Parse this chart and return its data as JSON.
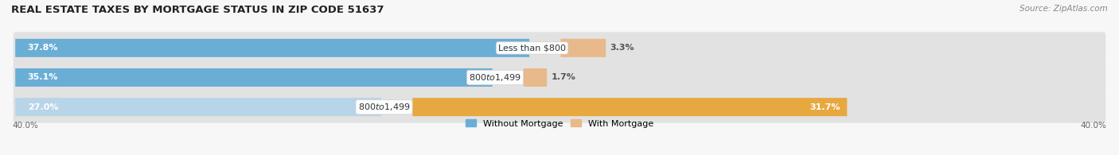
{
  "title": "REAL ESTATE TAXES BY MORTGAGE STATUS IN ZIP CODE 51637",
  "source": "Source: ZipAtlas.com",
  "rows": [
    {
      "without_mortgage": 37.8,
      "label": "Less than $800",
      "with_mortgage": 3.3
    },
    {
      "without_mortgage": 35.1,
      "label": "$800 to $1,499",
      "with_mortgage": 1.7
    },
    {
      "without_mortgage": 27.0,
      "label": "$800 to $1,499",
      "with_mortgage": 31.7
    }
  ],
  "xlim": 40.0,
  "color_without": "#6aaed6",
  "color_without_light": "#b8d4e8",
  "color_with_row0": "#e8b98a",
  "color_with_row1": "#e8b98a",
  "color_with_row2": "#e8a840",
  "bar_height": 0.62,
  "background_color": "#f7f7f7",
  "row_bg_color": "#e2e2e2",
  "legend_label_without": "Without Mortgage",
  "legend_label_with": "With Mortgage",
  "axis_label": "40.0%",
  "title_fontsize": 9.5,
  "source_fontsize": 7.5,
  "pct_fontsize": 8,
  "label_fontsize": 8
}
